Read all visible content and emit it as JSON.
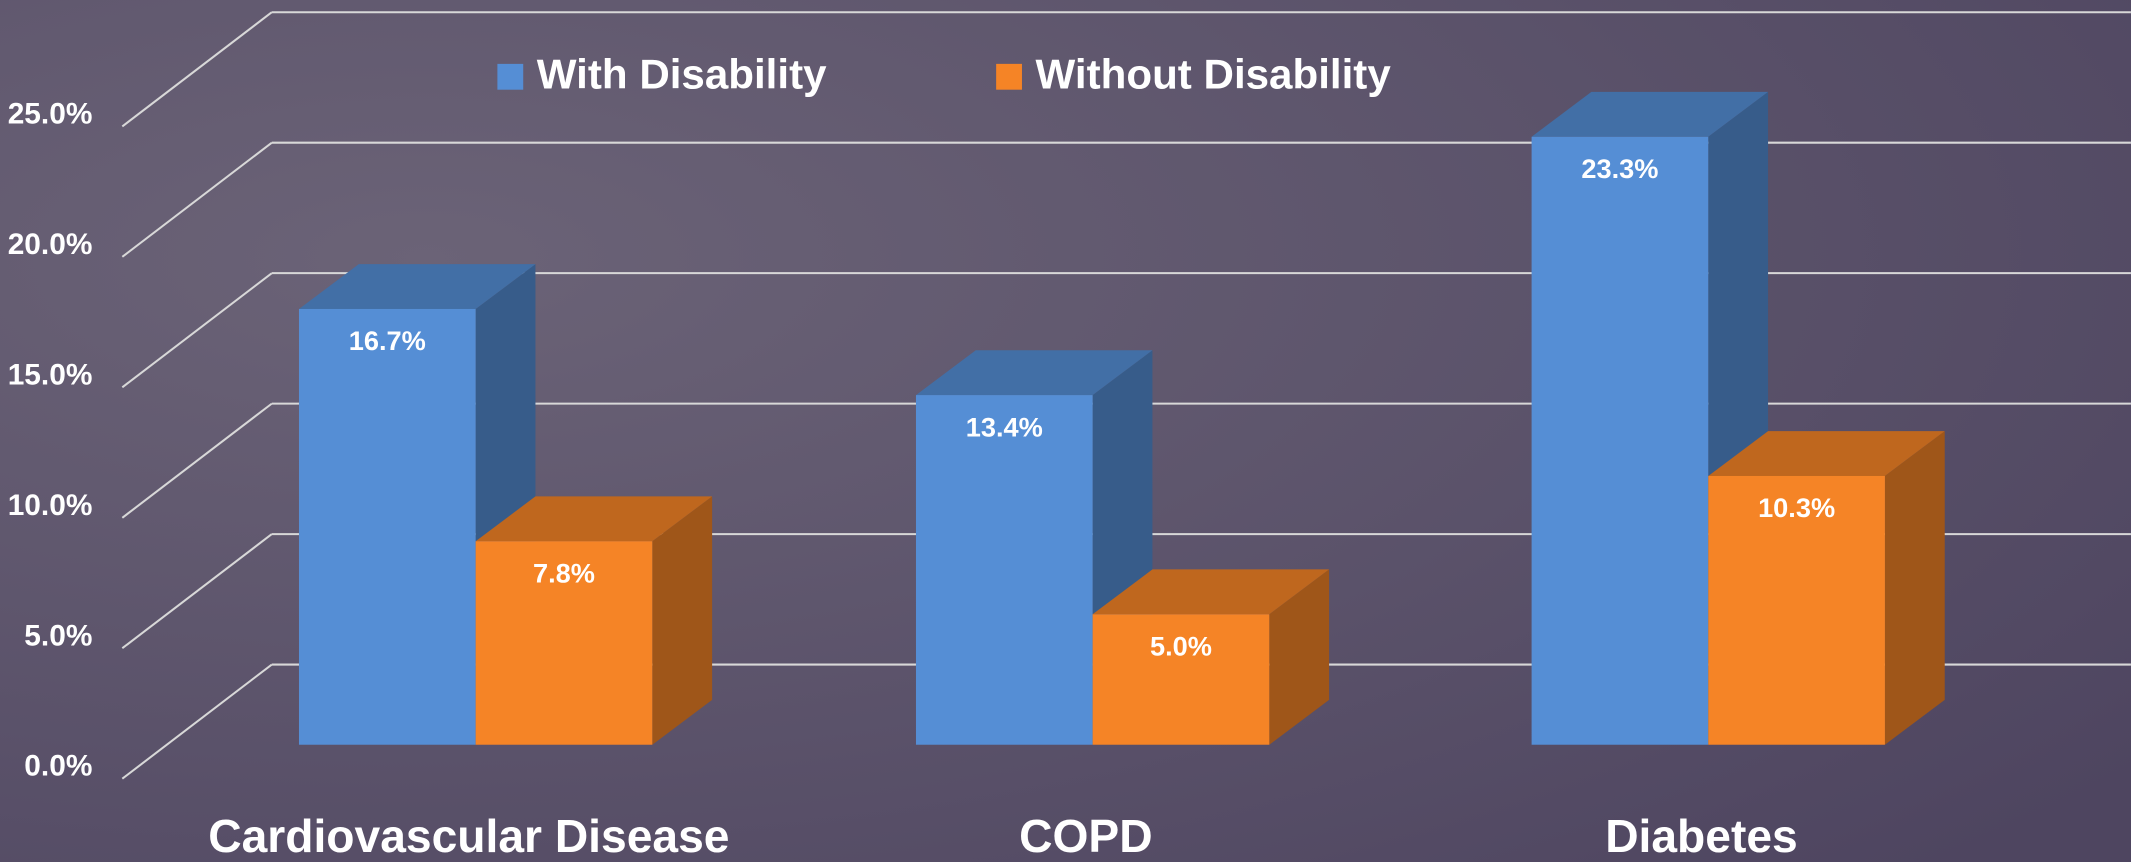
{
  "chart_data": {
    "type": "bar3d",
    "categories": [
      "Cardiovascular Disease",
      "COPD",
      "Diabetes"
    ],
    "series": [
      {
        "name": "With Disability",
        "color": "#558ed5",
        "values": [
          16.7,
          13.4,
          23.3
        ],
        "value_labels": [
          "16.7%",
          "13.4%",
          "23.3%"
        ]
      },
      {
        "name": "Without Disability",
        "color": "#f58426",
        "values": [
          7.8,
          5.0,
          10.3
        ],
        "value_labels": [
          "7.8%",
          "5.0%",
          "10.3%"
        ]
      }
    ],
    "ylim": [
      0,
      25
    ],
    "yticks": [
      {
        "value": 0,
        "label": "0.0%"
      },
      {
        "value": 5,
        "label": "5.0%"
      },
      {
        "value": 10,
        "label": "10.0%"
      },
      {
        "value": 15,
        "label": "15.0%"
      },
      {
        "value": 20,
        "label": "20.0%"
      },
      {
        "value": 25,
        "label": "25.0%"
      }
    ],
    "grid": true,
    "legend": "top"
  }
}
